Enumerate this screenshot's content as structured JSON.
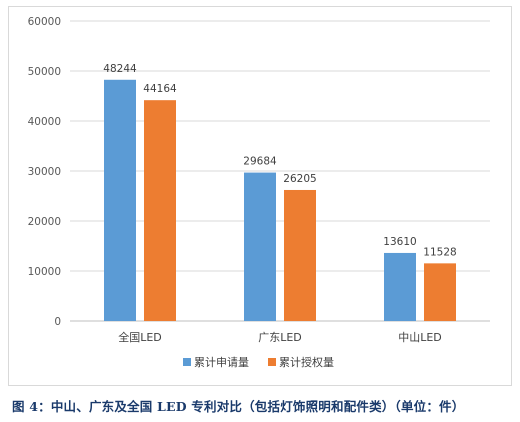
{
  "chart_data": {
    "type": "bar",
    "categories": [
      "全国LED",
      "广东LED",
      "中山LED"
    ],
    "series": [
      {
        "name": "累计申请量",
        "values": [
          48244,
          29684,
          13610
        ],
        "color": "#5b9bd5"
      },
      {
        "name": "累计授权量",
        "values": [
          44164,
          26205,
          11528
        ],
        "color": "#ed7d31"
      }
    ],
    "ylim": [
      0,
      60000
    ],
    "yticks": [
      0,
      10000,
      20000,
      30000,
      40000,
      50000,
      60000
    ],
    "grid": true,
    "legend_position": "bottom"
  },
  "caption": "图 4：中山、广东及全国 LED 专利对比（包括灯饰照明和配件类）（单位：件）"
}
